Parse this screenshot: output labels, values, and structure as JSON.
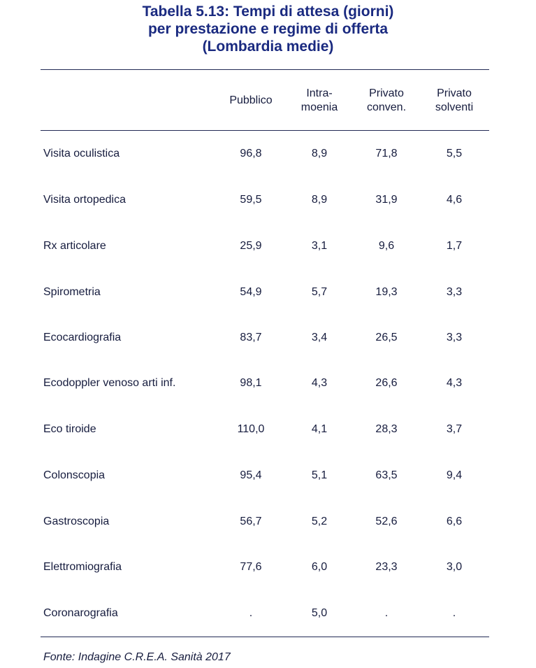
{
  "title": {
    "line1": "Tabella 5.13: Tempi di attesa (giorni)",
    "line2": "per prestazione e regime di offerta",
    "line3": "(Lombardia medie)"
  },
  "columns": {
    "pubblico": "Pubblico",
    "intra_1": "Intra-",
    "intra_2": "moenia",
    "conv_1": "Privato",
    "conv_2": "conven.",
    "solv_1": "Privato",
    "solv_2": "solventi"
  },
  "rows": [
    {
      "label": "Visita oculistica",
      "pubblico": "96,8",
      "intramoenia": "8,9",
      "privato_conv": "71,8",
      "privato_solv": "5,5"
    },
    {
      "label": "Visita ortopedica",
      "pubblico": "59,5",
      "intramoenia": "8,9",
      "privato_conv": "31,9",
      "privato_solv": "4,6"
    },
    {
      "label": "Rx articolare",
      "pubblico": "25,9",
      "intramoenia": "3,1",
      "privato_conv": "9,6",
      "privato_solv": "1,7"
    },
    {
      "label": "Spirometria",
      "pubblico": "54,9",
      "intramoenia": "5,7",
      "privato_conv": "19,3",
      "privato_solv": "3,3"
    },
    {
      "label": "Ecocardiografia",
      "pubblico": "83,7",
      "intramoenia": "3,4",
      "privato_conv": "26,5",
      "privato_solv": "3,3"
    },
    {
      "label": "Ecodoppler venoso arti inf.",
      "pubblico": "98,1",
      "intramoenia": "4,3",
      "privato_conv": "26,6",
      "privato_solv": "4,3"
    },
    {
      "label": "Eco tiroide",
      "pubblico": "110,0",
      "intramoenia": "4,1",
      "privato_conv": "28,3",
      "privato_solv": "3,7"
    },
    {
      "label": "Colonscopia",
      "pubblico": "95,4",
      "intramoenia": "5,1",
      "privato_conv": "63,5",
      "privato_solv": "9,4"
    },
    {
      "label": "Gastroscopia",
      "pubblico": "56,7",
      "intramoenia": "5,2",
      "privato_conv": "52,6",
      "privato_solv": "6,6"
    },
    {
      "label": "Elettromiografia",
      "pubblico": "77,6",
      "intramoenia": "6,0",
      "privato_conv": "23,3",
      "privato_solv": "3,0"
    },
    {
      "label": "Coronarografia",
      "pubblico": ".",
      "intramoenia": "5,0",
      "privato_conv": ".",
      "privato_solv": "."
    }
  ],
  "source": "Fonte: Indagine C.R.E.A. Sanità 2017"
}
